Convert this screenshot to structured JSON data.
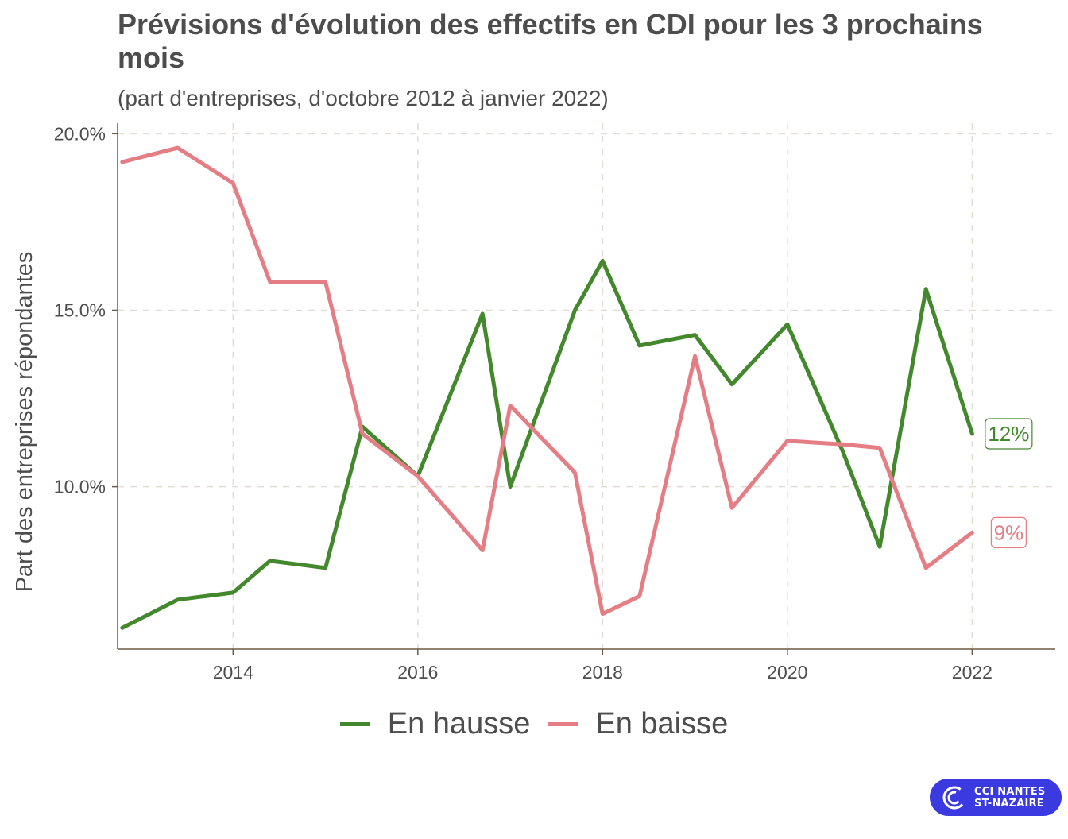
{
  "header": {
    "title": "Prévisions d'évolution des effectifs en CDI pour les 3 prochains mois",
    "subtitle": "(part d'entreprises, d'octobre 2012 à janvier 2022)"
  },
  "logo": {
    "line1": "CCI NANTES",
    "line2": "ST-NAZAIRE",
    "color": "#3a3ae0"
  },
  "chart_data": {
    "type": "line",
    "title": "Prévisions d'évolution des effectifs en CDI pour les 3 prochains mois",
    "subtitle": "(part d'entreprises, d'octobre 2012 à janvier 2022)",
    "xlabel": "",
    "ylabel": "Part des entreprises répondantes",
    "x_ticks": [
      "2014",
      "2016",
      "2018",
      "2020",
      "2022"
    ],
    "y_ticks": [
      "10.0%",
      "15.0%",
      "20.0%"
    ],
    "x_tick_values": [
      2014,
      2016,
      2018,
      2020,
      2022
    ],
    "y_tick_values": [
      10,
      15,
      20
    ],
    "xlim": [
      2012.75,
      2022.9
    ],
    "ylim": [
      5.4,
      20.3
    ],
    "grid": true,
    "legend_position": "bottom",
    "x": [
      2012.8,
      2013.4,
      2014.0,
      2014.4,
      2015.0,
      2015.4,
      2016.0,
      2016.7,
      2017.0,
      2017.7,
      2018.0,
      2018.4,
      2019.0,
      2019.4,
      2020.0,
      2020.6,
      2021.0,
      2021.5,
      2022.0
    ],
    "series": [
      {
        "name": "En hausse",
        "color": "#44882e",
        "end_label": "12%",
        "values": [
          6.0,
          6.8,
          7.0,
          7.9,
          7.7,
          11.7,
          10.3,
          14.9,
          10.0,
          15.0,
          16.4,
          14.0,
          14.3,
          12.9,
          14.6,
          11.0,
          8.3,
          15.6,
          11.5
        ]
      },
      {
        "name": "En baisse",
        "color": "#e47d84",
        "end_label": "9%",
        "values": [
          19.2,
          19.6,
          18.6,
          15.8,
          15.8,
          11.5,
          10.3,
          8.2,
          12.3,
          10.4,
          6.4,
          6.9,
          13.7,
          9.4,
          11.3,
          11.2,
          11.1,
          7.7,
          8.7
        ]
      }
    ]
  }
}
